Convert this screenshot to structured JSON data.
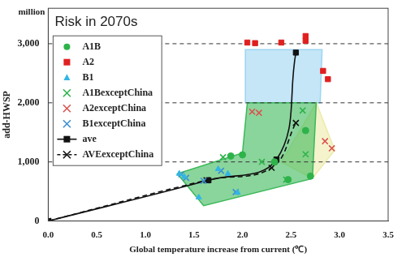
{
  "chart_data": {
    "type": "scatter",
    "title": "Risk in 2070s",
    "x_label": "Global temperature increase from current (℃)",
    "y_label": "add-HWSP",
    "y_unit": "million",
    "xlim": [
      0,
      3.5
    ],
    "xticks": [
      {
        "value": 0,
        "label": "0.0"
      },
      0.5,
      {
        "value": 1,
        "label": "1.0"
      },
      1.5,
      {
        "value": 2,
        "label": "2.0"
      },
      2.5,
      {
        "value": 3,
        "label": "3.0"
      },
      3.5
    ],
    "ylim": [
      0,
      3600
    ],
    "yticks": [
      0,
      {
        "value": 1000,
        "label": "1,000"
      },
      {
        "value": 2000,
        "label": "2,000"
      },
      {
        "value": 3000,
        "label": "3,000"
      }
    ],
    "grid": true,
    "legend": "top-left",
    "regions": [
      {
        "color": "#9dd5f2",
        "x": [
          2.03,
          2.82,
          2.8,
          2.03
        ],
        "y": [
          2900,
          2900,
          2000,
          2000
        ]
      },
      {
        "color": "#ecebaa",
        "x": [
          2.4,
          2.76,
          2.95,
          2.72
        ],
        "y": [
          1000,
          2000,
          1200,
          720
        ]
      },
      {
        "color": "#3cb95a",
        "x": [
          1.33,
          2.0,
          2.05,
          2.76,
          2.72,
          1.6
        ],
        "y": [
          800,
          1150,
          2000,
          2000,
          720,
          260
        ]
      }
    ],
    "series": [
      {
        "name": "A1B",
        "color": "#2db34a",
        "marker": "circle",
        "line_style": "none",
        "x": [
          1.88,
          2.0,
          2.33,
          2.65,
          2.7,
          2.47
        ],
        "values": [
          1100,
          1120,
          1000,
          1530,
          760,
          700
        ]
      },
      {
        "name": "A2",
        "color": "#e02020",
        "marker": "square",
        "line_style": "none",
        "x": [
          2.05,
          2.13,
          2.4,
          2.65,
          2.65,
          2.83,
          2.88
        ],
        "values": [
          3020,
          3010,
          3020,
          3130,
          3050,
          2540,
          2400
        ]
      },
      {
        "name": "B1",
        "color": "#33b5e5",
        "marker": "triangle",
        "line_style": "none",
        "x": [
          1.35,
          1.4,
          1.55,
          1.75,
          1.85,
          1.95
        ],
        "values": [
          800,
          750,
          400,
          880,
          800,
          480
        ]
      },
      {
        "name": "A1BexceptChina",
        "color": "#2db34a",
        "marker": "x",
        "line_style": "none",
        "x": [
          1.8,
          2.45,
          2.65,
          2.62,
          2.2
        ],
        "values": [
          1080,
          700,
          1130,
          1870,
          1000
        ]
      },
      {
        "name": "A2exceptChina",
        "color": "#d9534f",
        "marker": "x",
        "line_style": "none",
        "x": [
          2.1,
          2.17,
          2.85,
          2.92
        ],
        "values": [
          1850,
          1830,
          1350,
          1230
        ]
      },
      {
        "name": "B1exceptChina",
        "color": "#3a8fd0",
        "marker": "x",
        "line_style": "none",
        "x": [
          1.37,
          1.42,
          1.6,
          1.78,
          1.93
        ],
        "values": [
          790,
          730,
          680,
          850,
          490
        ]
      },
      {
        "name": "ave",
        "color": "#111111",
        "marker": "square",
        "line_style": "solid",
        "x": [
          0,
          1.65,
          2.35,
          2.55
        ],
        "values": [
          0,
          690,
          1040,
          2850
        ]
      },
      {
        "name": "AVEexceptChina",
        "color": "#111111",
        "marker": "x",
        "line_style": "dashed",
        "x": [
          0,
          1.63,
          2.3,
          2.55
        ],
        "values": [
          0,
          690,
          900,
          1660
        ]
      }
    ]
  }
}
